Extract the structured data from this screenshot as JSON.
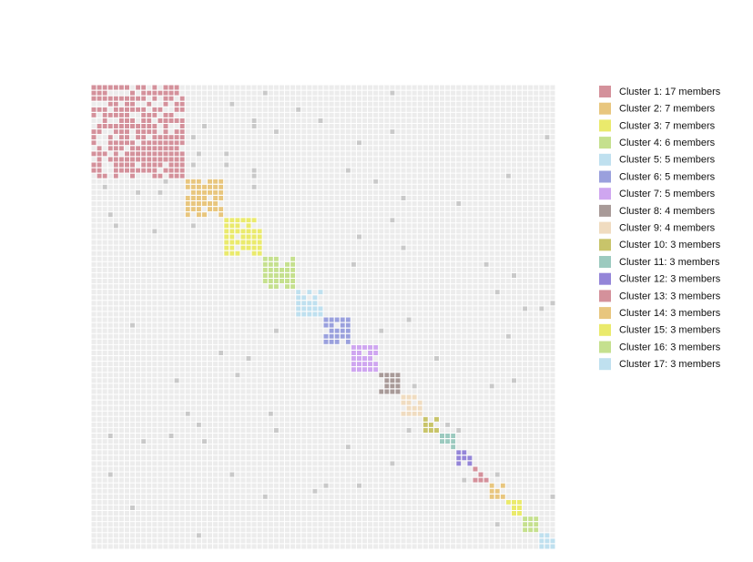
{
  "chart_data": {
    "type": "matrix",
    "series": [
      {
        "name": "Cluster 1: 17 members",
        "color": "#d4919b",
        "members": 17
      },
      {
        "name": "Cluster 2: 7 members",
        "color": "#e8c67e",
        "members": 7
      },
      {
        "name": "Cluster 3: 7 members",
        "color": "#eaea6c",
        "members": 7
      },
      {
        "name": "Cluster 4: 6 members",
        "color": "#c5e08e",
        "members": 6
      },
      {
        "name": "Cluster 5: 5 members",
        "color": "#bfe0ef",
        "members": 5
      },
      {
        "name": "Cluster 6: 5 members",
        "color": "#9aa0dd",
        "members": 5
      },
      {
        "name": "Cluster 7: 5 members",
        "color": "#cfa6f0",
        "members": 5
      },
      {
        "name": "Cluster 8: 4 members",
        "color": "#a89a98",
        "members": 4
      },
      {
        "name": "Cluster 9: 4 members",
        "color": "#f0dcc0",
        "members": 4
      },
      {
        "name": "Cluster 10: 3 members",
        "color": "#c8c46a",
        "members": 3
      },
      {
        "name": "Cluster 11: 3 members",
        "color": "#9ccabf",
        "members": 3
      },
      {
        "name": "Cluster 12: 3 members",
        "color": "#9485d8",
        "members": 3
      },
      {
        "name": "Cluster 13: 3 members",
        "color": "#d4919b",
        "members": 3
      },
      {
        "name": "Cluster 14: 3 members",
        "color": "#e8c67e",
        "members": 3
      },
      {
        "name": "Cluster 15: 3 members",
        "color": "#eaea6c",
        "members": 3
      },
      {
        "name": "Cluster 16: 3 members",
        "color": "#c5e08e",
        "members": 3
      },
      {
        "name": "Cluster 17: 3 members",
        "color": "#bfe0ef",
        "members": 3
      }
    ]
  }
}
